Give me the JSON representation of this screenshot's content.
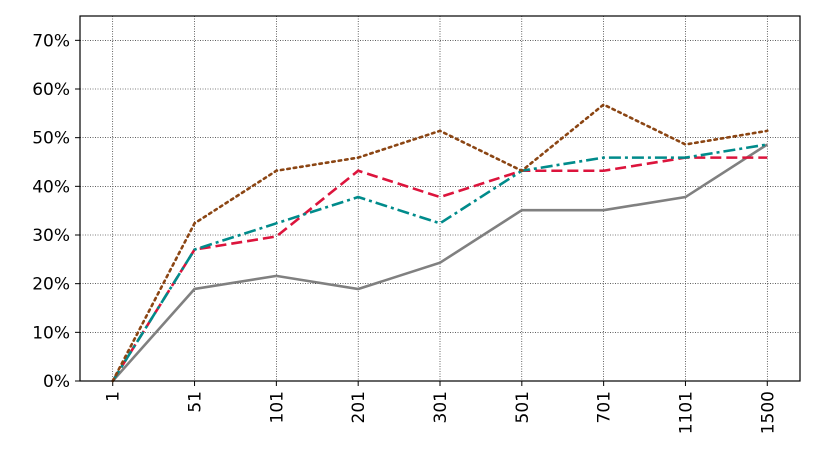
{
  "chart_data": {
    "type": "line",
    "categories": [
      "1",
      "51",
      "101",
      "201",
      "301",
      "501",
      "701",
      "1101",
      "1500"
    ],
    "series": [
      {
        "color": "#808080",
        "dash": "solid",
        "values": [
          0,
          18.9,
          21.6,
          18.9,
          24.3,
          35.1,
          35.1,
          37.8,
          48.6
        ]
      },
      {
        "color": "#dc143c",
        "dash": "dashed",
        "values": [
          0,
          27.0,
          29.7,
          43.2,
          37.8,
          43.2,
          43.2,
          45.9,
          45.9
        ]
      },
      {
        "color": "#008b8b",
        "dash": "dashdot",
        "values": [
          0,
          27.0,
          32.4,
          37.8,
          32.4,
          43.2,
          45.9,
          45.9,
          48.6
        ]
      },
      {
        "color": "#8b4513",
        "dash": "dotted",
        "values": [
          0,
          32.4,
          43.2,
          45.9,
          51.4,
          43.2,
          56.8,
          48.6,
          51.4
        ]
      }
    ],
    "ylim": [
      0,
      75
    ],
    "yticks": [
      {
        "value": 0,
        "label": "0%"
      },
      {
        "value": 10,
        "label": "10%"
      },
      {
        "value": 20,
        "label": "20%"
      },
      {
        "value": 30,
        "label": "30%"
      },
      {
        "value": 40,
        "label": "40%"
      },
      {
        "value": 50,
        "label": "50%"
      },
      {
        "value": 60,
        "label": "60%"
      },
      {
        "value": 70,
        "label": "70%"
      }
    ],
    "grid": true
  }
}
